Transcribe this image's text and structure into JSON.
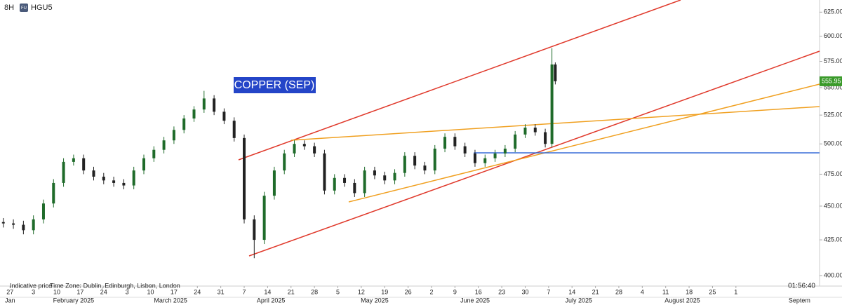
{
  "chart_data": {
    "type": "candlestick",
    "interval": "8H",
    "symbol_badge": "FU",
    "symbol": "HGU5",
    "annotation": "COPPER (SEP)",
    "footer_note": "Indicative price",
    "timezone": "Time Zone: Dublin, Edinburgh, Lisbon, London",
    "clock": "01:56:40",
    "log_scale": true,
    "up_color": "#1f6b2a",
    "down_color": "#222222",
    "last_price_color": "#3a9a2a",
    "x": [
      24,
      27,
      30,
      33,
      36,
      39,
      42,
      45,
      48,
      51,
      54,
      57,
      60,
      63,
      66,
      69,
      72,
      75,
      78,
      81,
      84,
      87,
      90,
      93,
      96,
      99,
      102,
      105,
      108,
      111,
      114,
      117,
      120,
      123,
      126,
      129,
      132,
      135,
      138,
      141,
      144,
      147,
      150,
      153,
      156,
      159,
      162,
      165,
      168,
      171,
      174,
      177,
      180,
      183,
      186,
      188,
      189
    ],
    "open": [
      438,
      437,
      436,
      432,
      440,
      452,
      468,
      485,
      488,
      478,
      473,
      470,
      468,
      466,
      478,
      488,
      495,
      503,
      512,
      522,
      530,
      540,
      528,
      520,
      505,
      440,
      425,
      458,
      478,
      492,
      500,
      498,
      492,
      462,
      472,
      468,
      460,
      478,
      474,
      470,
      476,
      490,
      482,
      478,
      496,
      506,
      498,
      492,
      484,
      488,
      492,
      496,
      508,
      514,
      510,
      500,
      572
    ],
    "high": [
      441,
      440,
      439,
      443,
      455,
      471,
      488,
      491,
      491,
      481,
      476,
      473,
      471,
      481,
      491,
      498,
      506,
      515,
      525,
      533,
      547,
      543,
      531,
      523,
      508,
      443,
      461,
      481,
      495,
      503,
      503,
      501,
      495,
      475,
      475,
      471,
      481,
      481,
      477,
      479,
      493,
      493,
      485,
      499,
      509,
      509,
      501,
      495,
      491,
      495,
      499,
      511,
      517,
      517,
      513,
      588,
      574
    ],
    "low": [
      434,
      433,
      429,
      429,
      437,
      449,
      465,
      482,
      475,
      470,
      467,
      465,
      463,
      463,
      475,
      485,
      492,
      500,
      509,
      519,
      527,
      525,
      517,
      502,
      437,
      412,
      422,
      455,
      475,
      489,
      495,
      489,
      459,
      459,
      465,
      457,
      457,
      471,
      467,
      467,
      473,
      479,
      475,
      475,
      493,
      495,
      489,
      481,
      481,
      485,
      489,
      493,
      505,
      507,
      497,
      497,
      553
    ],
    "close": [
      437,
      436,
      432,
      440,
      452,
      468,
      485,
      488,
      478,
      473,
      470,
      468,
      466,
      478,
      488,
      495,
      503,
      512,
      522,
      530,
      540,
      528,
      520,
      505,
      440,
      425,
      458,
      478,
      492,
      500,
      498,
      492,
      462,
      472,
      468,
      460,
      478,
      474,
      470,
      476,
      490,
      482,
      478,
      496,
      506,
      498,
      492,
      484,
      488,
      492,
      496,
      508,
      514,
      510,
      500,
      572,
      555.95
    ],
    "xlim": [
      23,
      268
    ],
    "ylim": [
      393,
      638
    ],
    "yticks": [
      {
        "value": 400,
        "label": "400.00"
      },
      {
        "value": 425,
        "label": "425.00"
      },
      {
        "value": 450,
        "label": "450.00"
      },
      {
        "value": 475,
        "label": "475.00"
      },
      {
        "value": 500,
        "label": "500.00"
      },
      {
        "value": 525,
        "label": "525.00"
      },
      {
        "value": 550,
        "label": "550.00"
      },
      {
        "value": 575,
        "label": "575.00"
      },
      {
        "value": 600,
        "label": "600.00"
      },
      {
        "value": 625,
        "label": "625.00"
      }
    ],
    "xticks": [
      {
        "value": 26,
        "label": "27"
      },
      {
        "value": 33,
        "label": "3"
      },
      {
        "value": 40,
        "label": "10"
      },
      {
        "value": 47,
        "label": "17"
      },
      {
        "value": 54,
        "label": "24"
      },
      {
        "value": 61,
        "label": "3"
      },
      {
        "value": 68,
        "label": "10"
      },
      {
        "value": 75,
        "label": "17"
      },
      {
        "value": 82,
        "label": "24"
      },
      {
        "value": 89,
        "label": "31"
      },
      {
        "value": 96,
        "label": "7"
      },
      {
        "value": 103,
        "label": "14"
      },
      {
        "value": 110,
        "label": "21"
      },
      {
        "value": 117,
        "label": "28"
      },
      {
        "value": 124,
        "label": "5"
      },
      {
        "value": 131,
        "label": "12"
      },
      {
        "value": 138,
        "label": "19"
      },
      {
        "value": 145,
        "label": "26"
      },
      {
        "value": 152,
        "label": "2"
      },
      {
        "value": 159,
        "label": "9"
      },
      {
        "value": 166,
        "label": "16"
      },
      {
        "value": 173,
        "label": "23"
      },
      {
        "value": 180,
        "label": "30"
      },
      {
        "value": 187,
        "label": "7"
      },
      {
        "value": 194,
        "label": "14"
      },
      {
        "value": 201,
        "label": "21"
      },
      {
        "value": 208,
        "label": "28"
      },
      {
        "value": 215,
        "label": "4"
      },
      {
        "value": 222,
        "label": "11"
      },
      {
        "value": 229,
        "label": "18"
      },
      {
        "value": 236,
        "label": "25"
      },
      {
        "value": 243,
        "label": "1"
      }
    ],
    "month_labels": [
      {
        "value": 26,
        "label": "Jan"
      },
      {
        "value": 45,
        "label": "February 2025"
      },
      {
        "value": 74,
        "label": "March 2025"
      },
      {
        "value": 104,
        "label": "April 2025"
      },
      {
        "value": 135,
        "label": "May 2025"
      },
      {
        "value": 165,
        "label": "June 2025"
      },
      {
        "value": 196,
        "label": "July 2025"
      },
      {
        "value": 227,
        "label": "August 2025"
      },
      {
        "value": 262,
        "label": "Septem"
      }
    ]
  }
}
